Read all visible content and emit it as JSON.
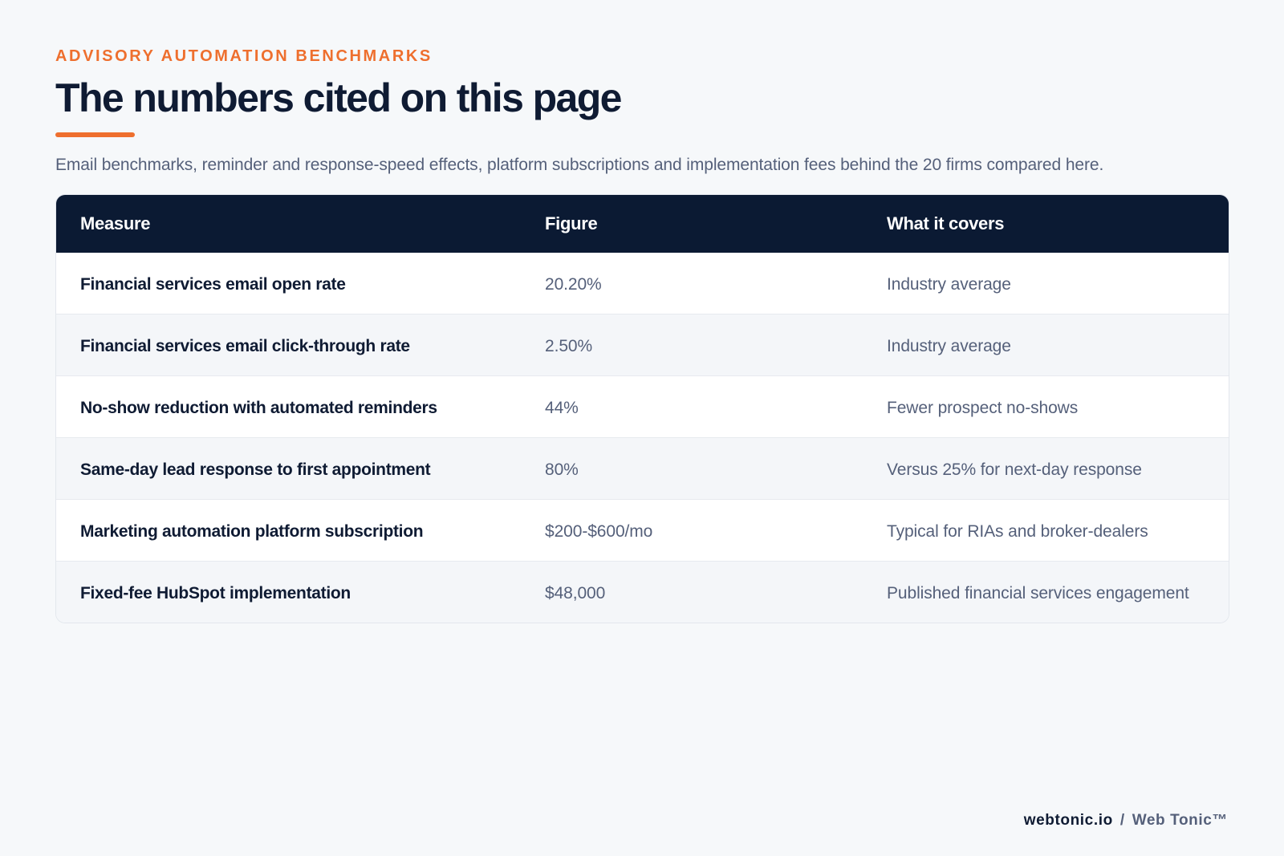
{
  "header": {
    "eyebrow": "ADVISORY AUTOMATION BENCHMARKS",
    "title": "The numbers cited on this page",
    "subtitle": "Email benchmarks, reminder and response-speed effects, platform subscriptions and implementation fees behind the 20 firms compared here."
  },
  "table": {
    "columns": [
      "Measure",
      "Figure",
      "What it covers"
    ],
    "rows": [
      {
        "measure": "Financial services email open rate",
        "figure": "20.20%",
        "covers": "Industry average"
      },
      {
        "measure": "Financial services email click-through rate",
        "figure": "2.50%",
        "covers": "Industry average"
      },
      {
        "measure": "No-show reduction with automated reminders",
        "figure": "44%",
        "covers": "Fewer prospect no-shows"
      },
      {
        "measure": "Same-day lead response to first appointment",
        "figure": "80%",
        "covers": "Versus 25% for next-day response"
      },
      {
        "measure": "Marketing automation platform subscription",
        "figure": "$200-$600/mo",
        "covers": "Typical for RIAs and broker-dealers"
      },
      {
        "measure": "Fixed-fee HubSpot implementation",
        "figure": "$48,000",
        "covers": "Published financial services engagement"
      }
    ]
  },
  "footer": {
    "domain": "webtonic.io",
    "separator": "/",
    "brand": "Web Tonic™"
  },
  "colors": {
    "accent": "#ee6f2e",
    "navy": "#0b1a33",
    "muted_text": "#55607a",
    "background": "#f6f8fa"
  }
}
